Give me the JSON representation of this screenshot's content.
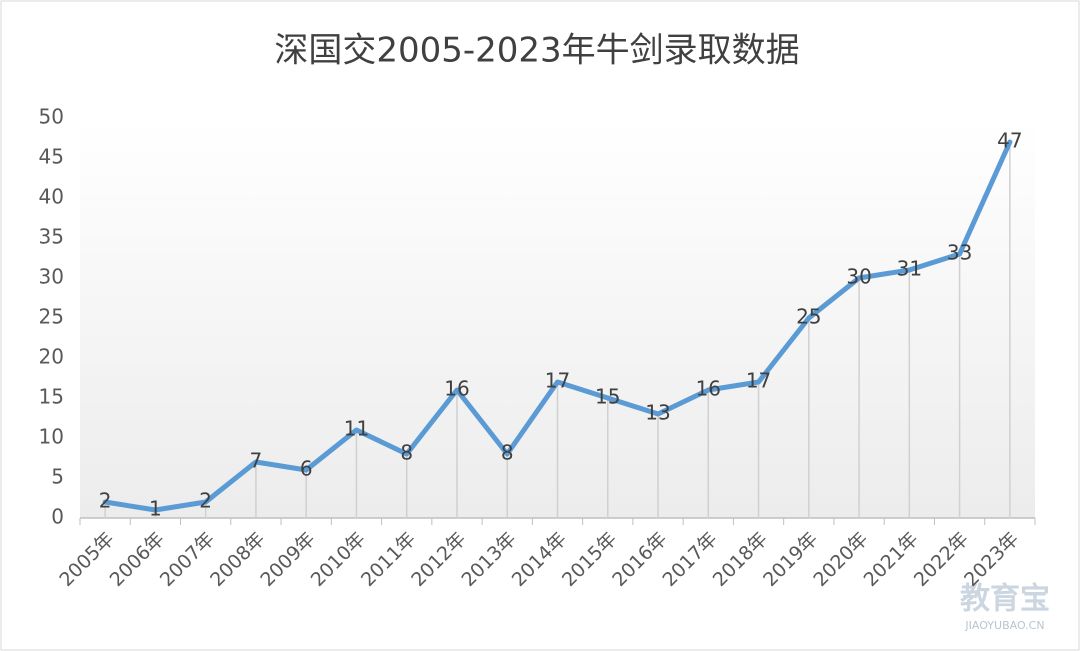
{
  "chart_data": {
    "type": "line",
    "title": "深国交2005-2023年牛剑录取数据",
    "categories": [
      "2005年",
      "2006年",
      "2007年",
      "2008年",
      "2009年",
      "2010年",
      "2011年",
      "2012年",
      "2013年",
      "2014年",
      "2015年",
      "2016年",
      "2017年",
      "2018年",
      "2019年",
      "2020年",
      "2021年",
      "2022年",
      "2023年"
    ],
    "values": [
      2,
      1,
      2,
      7,
      6,
      11,
      8,
      16,
      8,
      17,
      15,
      13,
      16,
      17,
      25,
      30,
      31,
      33,
      47
    ],
    "color": "#5b9bd5",
    "ylim": [
      0,
      50
    ],
    "yticks": [
      0,
      5,
      10,
      15,
      20,
      25,
      30,
      35,
      40,
      45,
      50
    ],
    "drop_lines": true,
    "data_labels": true
  },
  "watermark": {
    "brand": "教育宝",
    "site": "JIAOYUBAO.CN"
  }
}
